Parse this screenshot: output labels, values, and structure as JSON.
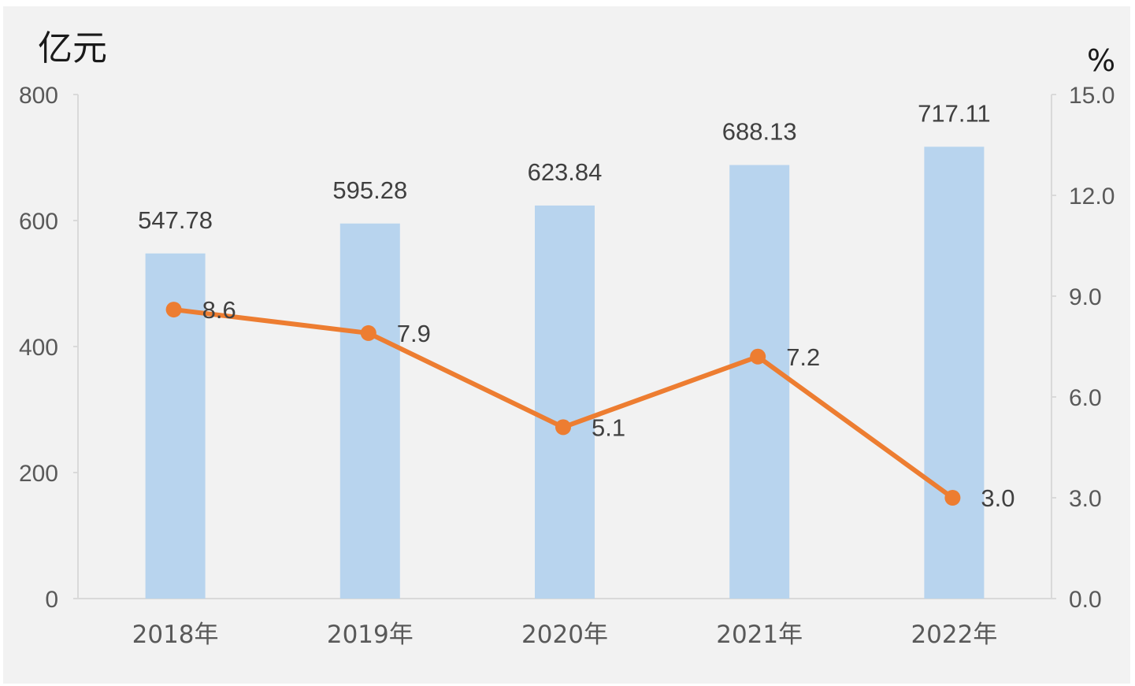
{
  "chart_data": {
    "type": "bar",
    "left_unit": "亿元",
    "right_unit": "%",
    "categories": [
      "2018年",
      "2019年",
      "2020年",
      "2021年",
      "2022年"
    ],
    "series": [
      {
        "type": "bar",
        "axis": "left",
        "values": [
          547.78,
          595.28,
          623.84,
          688.13,
          717.11
        ],
        "labels": [
          "547.78",
          "595.28",
          "623.84",
          "688.13",
          "717.11"
        ],
        "color": "#b8d4ee"
      },
      {
        "type": "line",
        "axis": "right",
        "values": [
          8.6,
          7.9,
          5.1,
          7.2,
          3.0
        ],
        "labels": [
          "8.6",
          "7.9",
          "5.1",
          "7.2",
          "3.0"
        ],
        "color": "#ed7d31"
      }
    ],
    "left_axis": {
      "min": 0,
      "max": 800,
      "ticks": [
        "0",
        "200",
        "400",
        "600",
        "800"
      ]
    },
    "right_axis": {
      "min": 0,
      "max": 15,
      "ticks": [
        "0.0",
        "3.0",
        "6.0",
        "9.0",
        "12.0",
        "15.0"
      ]
    },
    "grid": false,
    "legend": "none"
  }
}
